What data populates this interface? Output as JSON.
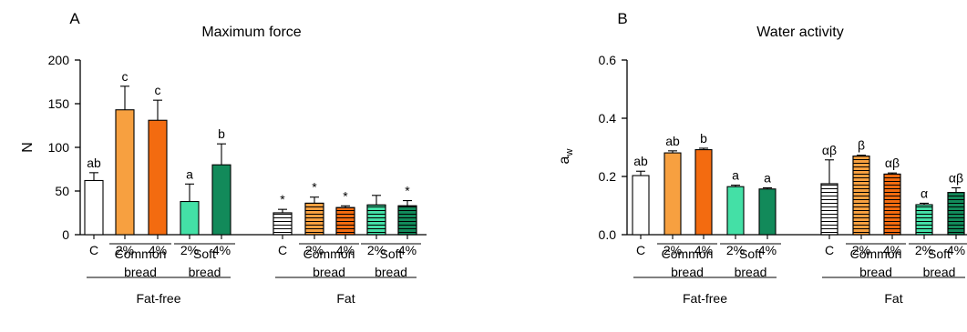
{
  "colors": {
    "white": "#ffffff",
    "orange_light": "#f7a040",
    "orange_dark": "#f36b10",
    "green_light": "#44e0a6",
    "green_dark": "#128a5a",
    "axis": "#000000"
  },
  "category_labels": [
    "C",
    "2%",
    "4%",
    "2%",
    "4%",
    "C",
    "2%",
    "4%",
    "2%",
    "4%"
  ],
  "bread_types": [
    "Common bread",
    "Soft bread"
  ],
  "fat_groups": [
    "Fat-free",
    "Fat"
  ],
  "chart_data": [
    {
      "type": "bar",
      "panel_letter": "A",
      "title": "Maximum force",
      "ylabel": "N",
      "ylim": [
        0,
        200
      ],
      "yticks": [
        "0",
        "50",
        "100",
        "150",
        "200"
      ],
      "grid": false,
      "bars": [
        {
          "group": "Fat-free",
          "label": "C",
          "value": 62,
          "error": 9,
          "sig": "ab",
          "color_key": "white",
          "hatch": false
        },
        {
          "group": "Fat-free",
          "label": "2%",
          "value": 143,
          "error": 27,
          "sig": "c",
          "color_key": "orange_light",
          "hatch": false
        },
        {
          "group": "Fat-free",
          "label": "4%",
          "value": 131,
          "error": 23,
          "sig": "c",
          "color_key": "orange_dark",
          "hatch": false
        },
        {
          "group": "Fat-free",
          "label": "2%",
          "value": 38,
          "error": 20,
          "sig": "a",
          "color_key": "green_light",
          "hatch": false
        },
        {
          "group": "Fat-free",
          "label": "4%",
          "value": 80,
          "error": 24,
          "sig": "b",
          "color_key": "green_dark",
          "hatch": false
        },
        {
          "group": "Fat",
          "label": "C",
          "value": 25,
          "error": 4,
          "sig": "*",
          "color_key": "white",
          "hatch": true
        },
        {
          "group": "Fat",
          "label": "2%",
          "value": 36,
          "error": 7,
          "sig": "*",
          "color_key": "orange_light",
          "hatch": true
        },
        {
          "group": "Fat",
          "label": "4%",
          "value": 31,
          "error": 2,
          "sig": "*",
          "color_key": "orange_dark",
          "hatch": true
        },
        {
          "group": "Fat",
          "label": "2%",
          "value": 34,
          "error": 11,
          "sig": "",
          "color_key": "green_light",
          "hatch": true
        },
        {
          "group": "Fat",
          "label": "4%",
          "value": 33,
          "error": 6,
          "sig": "*",
          "color_key": "green_dark",
          "hatch": true
        }
      ]
    },
    {
      "type": "bar",
      "panel_letter": "B",
      "title": "Water activity",
      "ylabel": "a",
      "ylabel_sub": "w",
      "ylim": [
        0,
        0.6
      ],
      "yticks": [
        "0.0",
        "0.2",
        "0.4",
        "0.6"
      ],
      "grid": false,
      "bars": [
        {
          "group": "Fat-free",
          "label": "C",
          "value": 0.203,
          "error": 0.015,
          "sig": "ab",
          "color_key": "white",
          "hatch": false
        },
        {
          "group": "Fat-free",
          "label": "2%",
          "value": 0.281,
          "error": 0.007,
          "sig": "ab",
          "color_key": "orange_light",
          "hatch": false
        },
        {
          "group": "Fat-free",
          "label": "4%",
          "value": 0.292,
          "error": 0.005,
          "sig": "b",
          "color_key": "orange_dark",
          "hatch": false
        },
        {
          "group": "Fat-free",
          "label": "2%",
          "value": 0.165,
          "error": 0.005,
          "sig": "a",
          "color_key": "green_light",
          "hatch": false
        },
        {
          "group": "Fat-free",
          "label": "4%",
          "value": 0.157,
          "error": 0.004,
          "sig": "a",
          "color_key": "green_dark",
          "hatch": false
        },
        {
          "group": "Fat",
          "label": "C",
          "value": 0.175,
          "error": 0.082,
          "sig": "αβ",
          "color_key": "white",
          "hatch": true
        },
        {
          "group": "Fat",
          "label": "2%",
          "value": 0.27,
          "error": 0.003,
          "sig": "β",
          "color_key": "orange_light",
          "hatch": true
        },
        {
          "group": "Fat",
          "label": "4%",
          "value": 0.208,
          "error": 0.004,
          "sig": "αβ",
          "color_key": "orange_dark",
          "hatch": true
        },
        {
          "group": "Fat",
          "label": "2%",
          "value": 0.103,
          "error": 0.005,
          "sig": "α",
          "color_key": "green_light",
          "hatch": true
        },
        {
          "group": "Fat",
          "label": "4%",
          "value": 0.145,
          "error": 0.016,
          "sig": "αβ",
          "color_key": "green_dark",
          "hatch": true
        }
      ]
    }
  ]
}
